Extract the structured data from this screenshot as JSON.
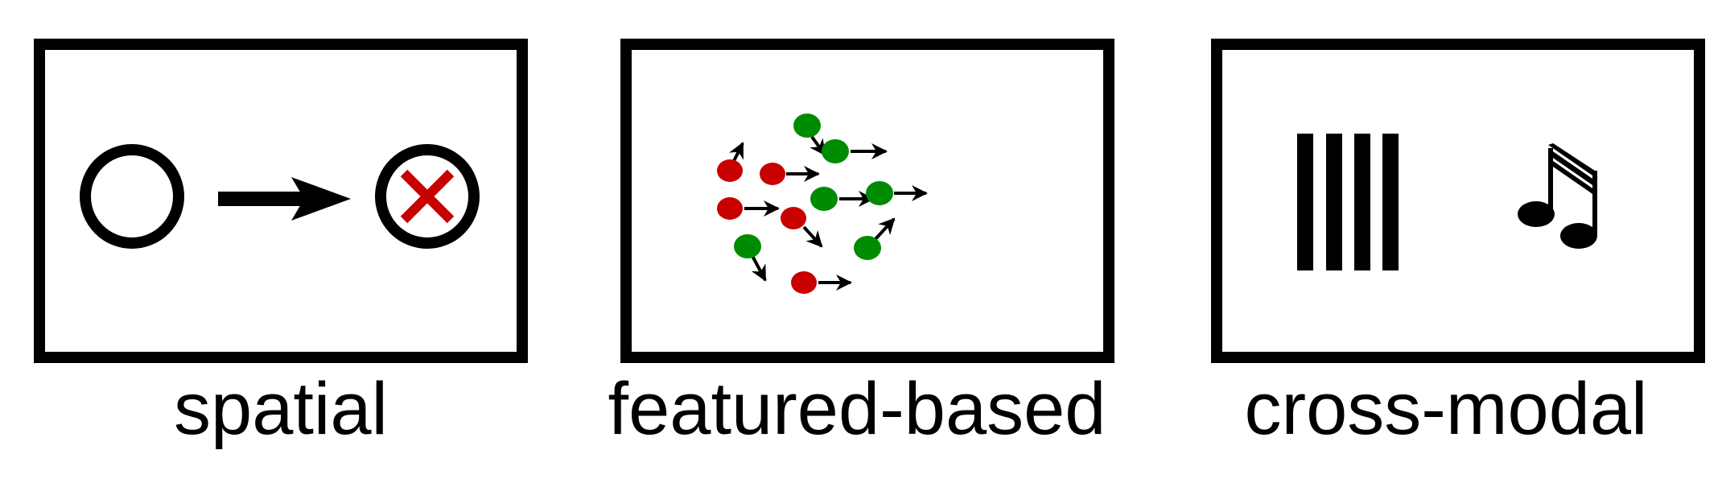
{
  "panels": [
    {
      "key": "spatial",
      "label": "spatial"
    },
    {
      "key": "feature",
      "label": "featured-based"
    },
    {
      "key": "crossmodal",
      "label": "cross-modal"
    }
  ],
  "colors": {
    "red": "#c80000",
    "green": "#008c00",
    "stroke": "#000000"
  },
  "icons": [
    "circle-icon",
    "right-arrow-icon",
    "crossed-circle-icon",
    "dot-with-arrow-icon",
    "vertical-bars-icon",
    "music-note-icon"
  ]
}
